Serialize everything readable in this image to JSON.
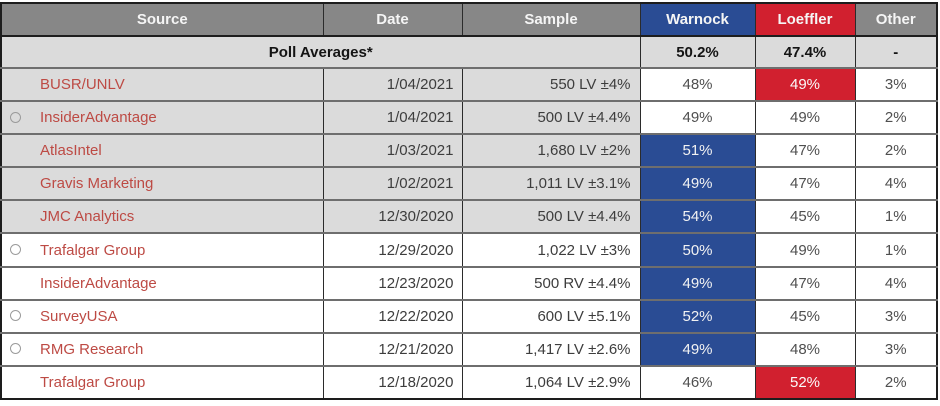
{
  "colors": {
    "header_gray": "#878787",
    "shaded_row_gray": "#dbdbdb",
    "warnock_blue": "#2a4c94",
    "loeffler_red": "#d1202f",
    "source_link_red": "#bd4a44"
  },
  "chart_data": {
    "type": "table",
    "columns": [
      "Source",
      "Date",
      "Sample",
      "Warnock",
      "Loeffler",
      "Other"
    ],
    "averages": {
      "label": "Poll Averages*",
      "warnock": "50.2%",
      "loeffler": "47.4%",
      "other": "-"
    },
    "rows": [
      {
        "source": "BUSR/UNLV",
        "date": "1/04/2021",
        "sample": "550 LV ±4%",
        "warnock": "48%",
        "loeffler": "49%",
        "other": "3%",
        "highlight": "loeffler",
        "in_average": true,
        "radio": false
      },
      {
        "source": "InsiderAdvantage",
        "date": "1/04/2021",
        "sample": "500 LV ±4.4%",
        "warnock": "49%",
        "loeffler": "49%",
        "other": "2%",
        "highlight": null,
        "in_average": true,
        "radio": true
      },
      {
        "source": "AtlasIntel",
        "date": "1/03/2021",
        "sample": "1,680 LV ±2%",
        "warnock": "51%",
        "loeffler": "47%",
        "other": "2%",
        "highlight": "warnock",
        "in_average": true,
        "radio": false
      },
      {
        "source": "Gravis Marketing",
        "date": "1/02/2021",
        "sample": "1,011 LV ±3.1%",
        "warnock": "49%",
        "loeffler": "47%",
        "other": "4%",
        "highlight": "warnock",
        "in_average": true,
        "radio": false
      },
      {
        "source": "JMC Analytics",
        "date": "12/30/2020",
        "sample": "500 LV ±4.4%",
        "warnock": "54%",
        "loeffler": "45%",
        "other": "1%",
        "highlight": "warnock",
        "in_average": true,
        "radio": false
      },
      {
        "source": "Trafalgar Group",
        "date": "12/29/2020",
        "sample": "1,022 LV ±3%",
        "warnock": "50%",
        "loeffler": "49%",
        "other": "1%",
        "highlight": "warnock",
        "in_average": false,
        "radio": true
      },
      {
        "source": "InsiderAdvantage",
        "date": "12/23/2020",
        "sample": "500 RV ±4.4%",
        "warnock": "49%",
        "loeffler": "47%",
        "other": "4%",
        "highlight": "warnock",
        "in_average": false,
        "radio": false
      },
      {
        "source": "SurveyUSA",
        "date": "12/22/2020",
        "sample": "600 LV ±5.1%",
        "warnock": "52%",
        "loeffler": "45%",
        "other": "3%",
        "highlight": "warnock",
        "in_average": false,
        "radio": true
      },
      {
        "source": "RMG Research",
        "date": "12/21/2020",
        "sample": "1,417 LV ±2.6%",
        "warnock": "49%",
        "loeffler": "48%",
        "other": "3%",
        "highlight": "warnock",
        "in_average": false,
        "radio": true
      },
      {
        "source": "Trafalgar Group",
        "date": "12/18/2020",
        "sample": "1,064 LV ±2.9%",
        "warnock": "46%",
        "loeffler": "52%",
        "other": "2%",
        "highlight": "loeffler",
        "in_average": false,
        "radio": false
      }
    ]
  }
}
